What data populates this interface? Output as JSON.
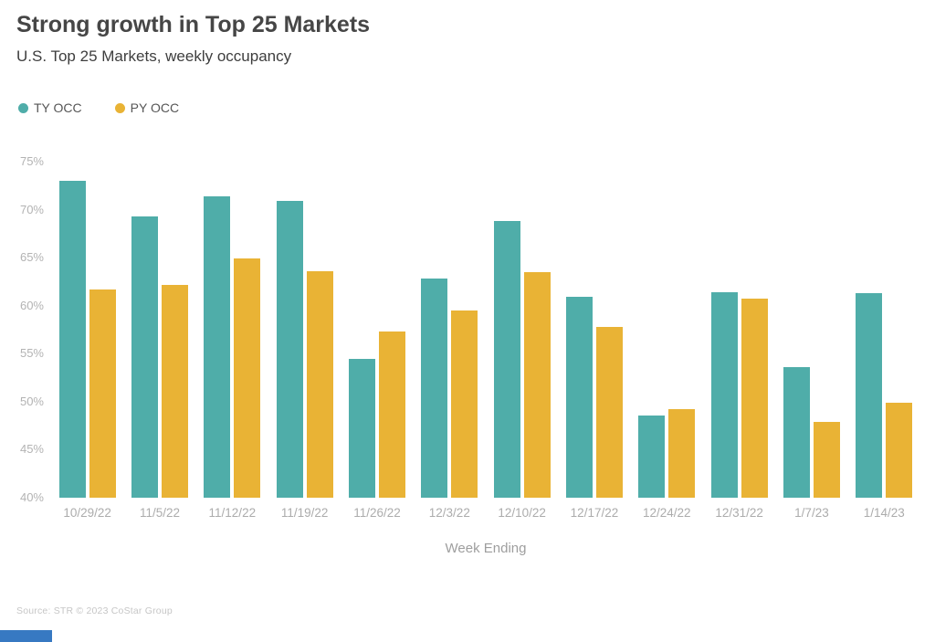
{
  "header": {
    "title": "Strong growth in Top 25 Markets",
    "subtitle": "U.S. Top 25 Markets, weekly occupancy"
  },
  "legend": [
    {
      "label": "TY OCC",
      "color": "#4FADA9"
    },
    {
      "label": "PY OCC",
      "color": "#E9B335"
    }
  ],
  "chart_data": {
    "type": "bar",
    "title": "Strong growth in Top 25 Markets",
    "subtitle": "U.S. Top 25 Markets, weekly occupancy",
    "categories": [
      "10/29/22",
      "11/5/22",
      "11/12/22",
      "11/19/22",
      "11/26/22",
      "12/3/22",
      "12/10/22",
      "12/17/22",
      "12/24/22",
      "12/31/22",
      "1/7/23",
      "1/14/23"
    ],
    "series": [
      {
        "name": "TY OCC",
        "color": "#4FADA9",
        "values": [
          73.0,
          69.3,
          71.4,
          70.9,
          54.5,
          62.8,
          68.8,
          60.9,
          48.6,
          61.4,
          53.6,
          61.3
        ]
      },
      {
        "name": "PY OCC",
        "color": "#E9B335",
        "values": [
          61.7,
          62.2,
          64.9,
          63.6,
          57.3,
          59.5,
          63.5,
          57.8,
          49.2,
          60.7,
          47.9,
          49.9
        ]
      }
    ],
    "xlabel": "Week Ending",
    "ylabel": "",
    "ylim": [
      40,
      75
    ],
    "yticks": [
      "75%",
      "70%",
      "65%",
      "60%",
      "55%",
      "50%",
      "45%",
      "40%"
    ],
    "ytick_values": [
      75,
      70,
      65,
      60,
      55,
      50,
      45,
      40
    ],
    "grid": false,
    "legend_position": "top-left",
    "unit": "%"
  },
  "footer": {
    "source": "Source: STR  © 2023 CoStar Group",
    "brand_bar_color": "#3779C2"
  }
}
